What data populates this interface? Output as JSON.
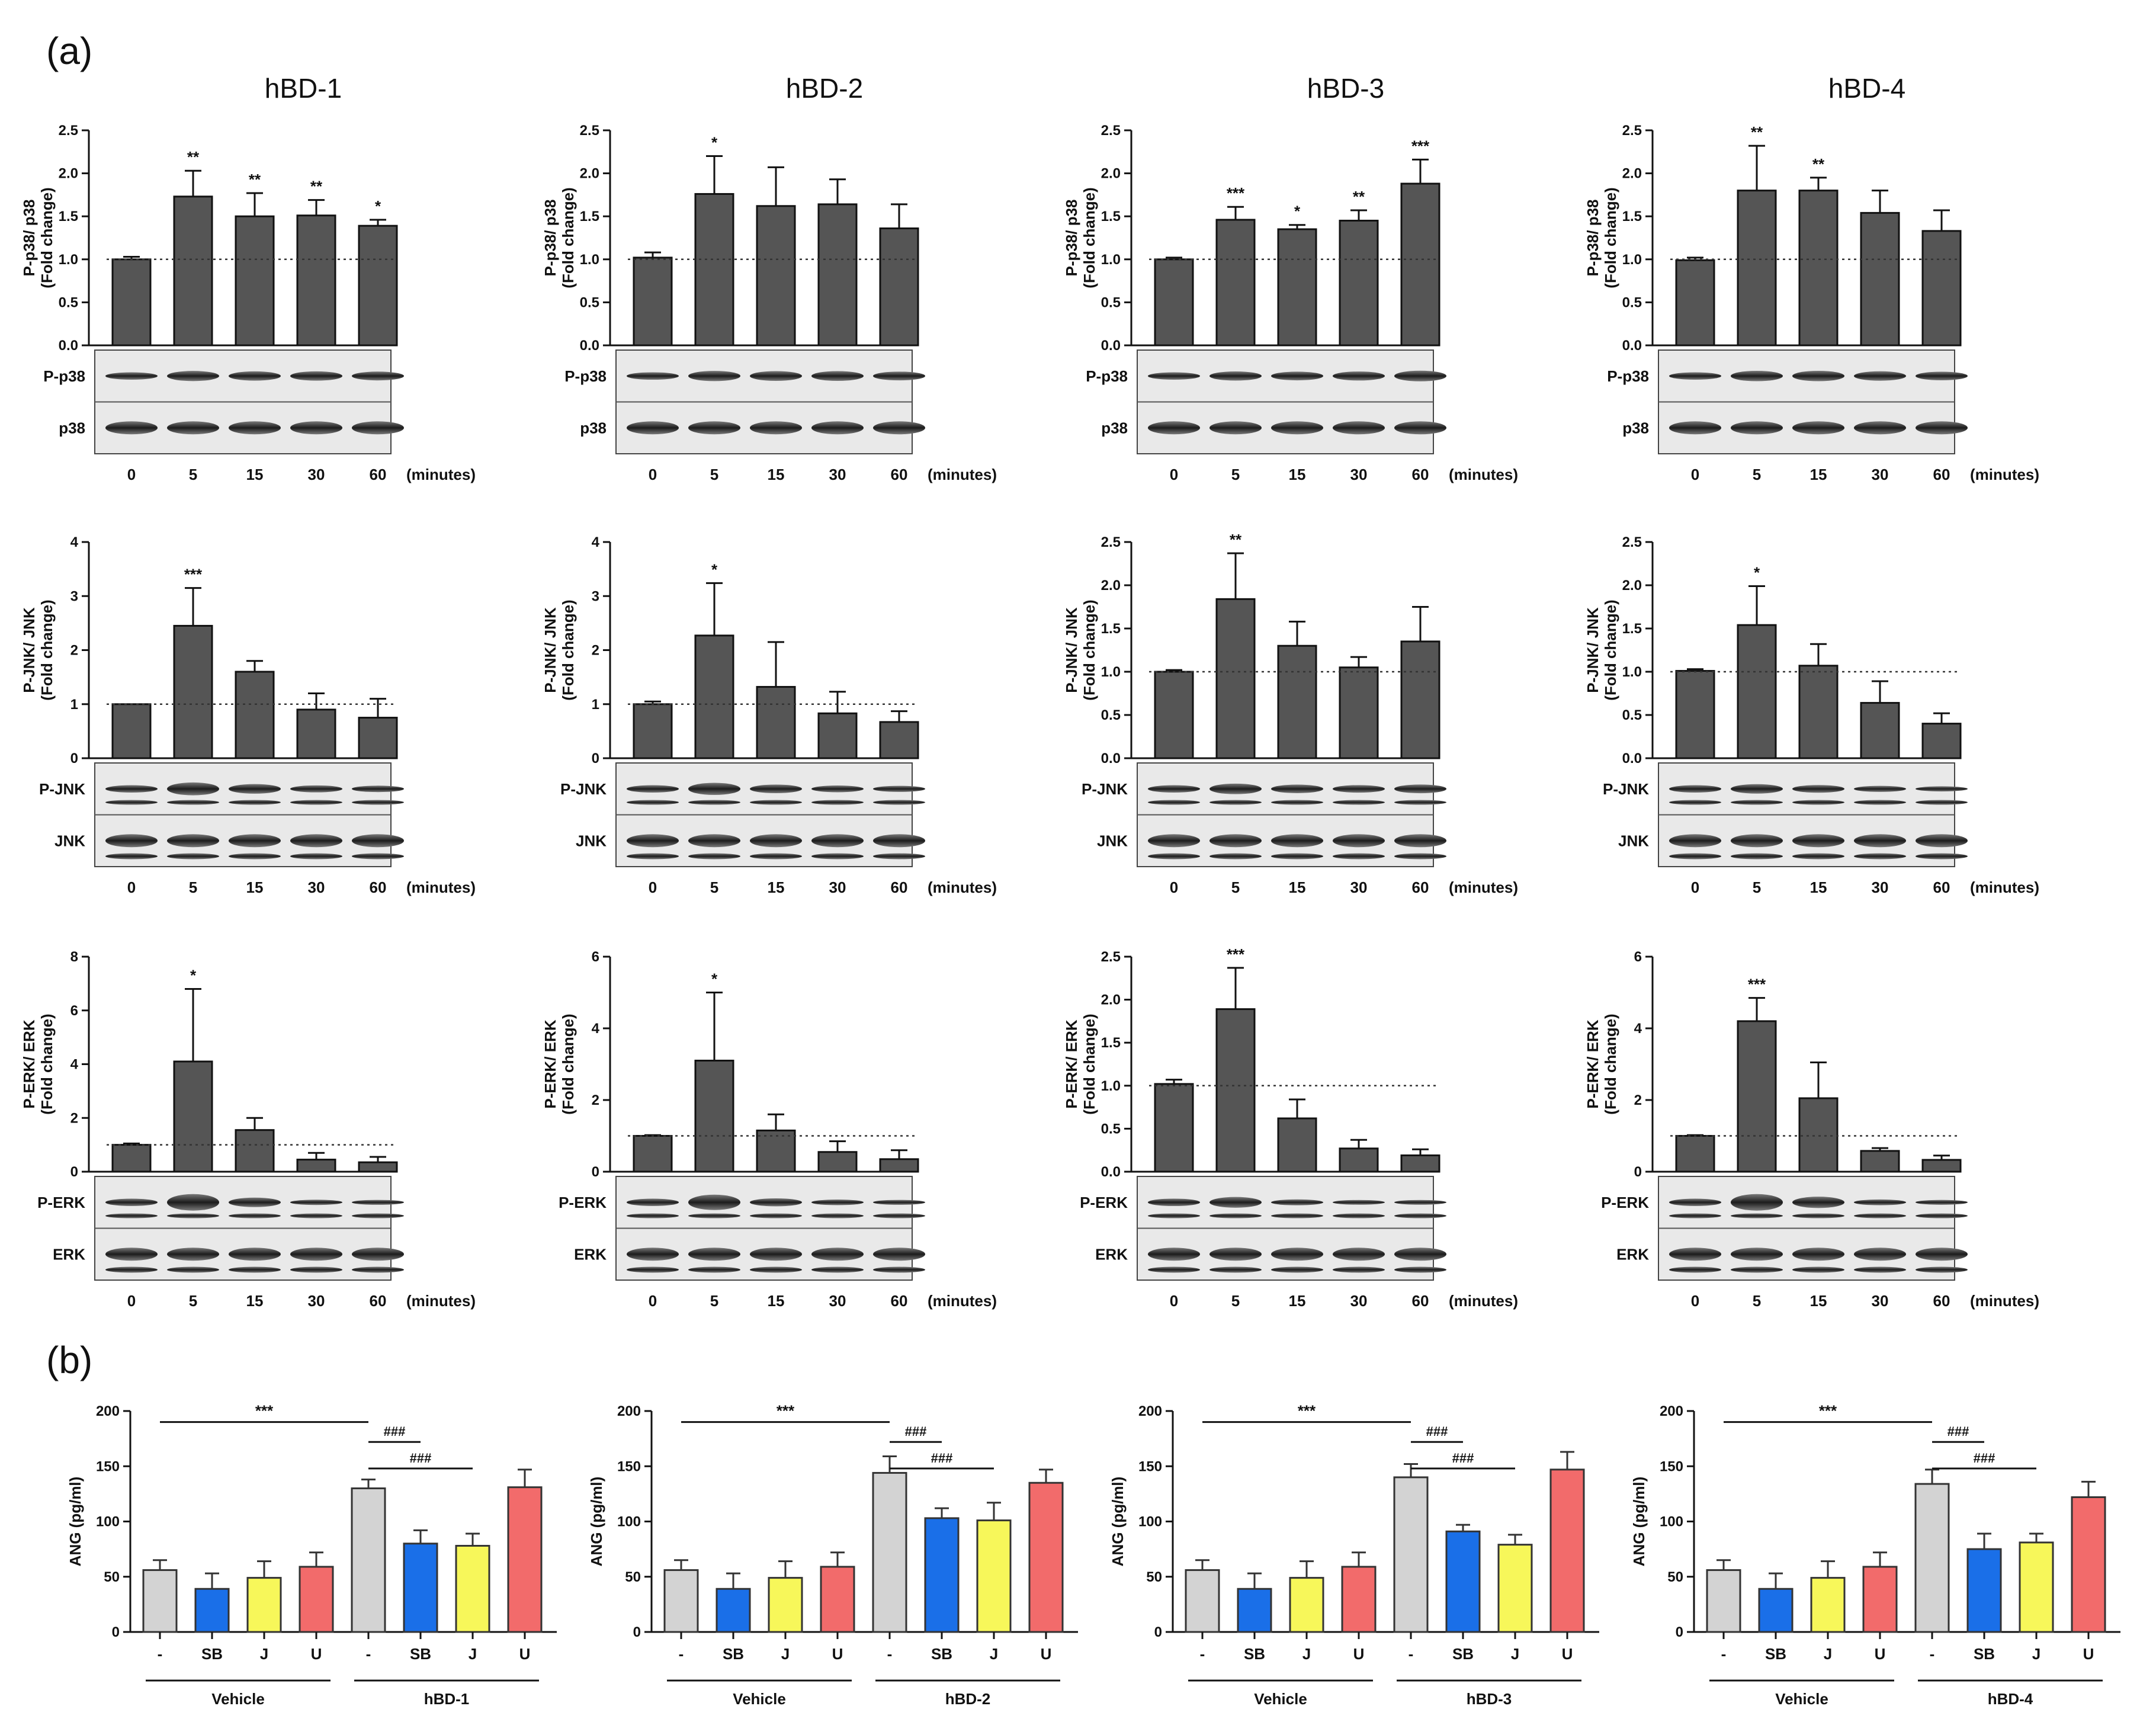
{
  "figure": {
    "panel_a_label": "(a)",
    "panel_b_label": "(b)",
    "columns": [
      "hBD-1",
      "hBD-2",
      "hBD-3",
      "hBD-4"
    ]
  },
  "colors": {
    "bar_dark": "#555555",
    "vehicle_grey": "#d3d3d3",
    "sb_blue": "#1a6fe8",
    "j_yellow": "#f7f75a",
    "u_red": "#f26b6b"
  },
  "chart_data": [
    {
      "type": "bar",
      "panel": "a",
      "row": "p38",
      "column": "hBD-1",
      "ylabel": [
        "P-p38/ p38",
        "(Fold change)"
      ],
      "categories": [
        "0",
        "5",
        "15",
        "30",
        "60"
      ],
      "xunit": "(minutes)",
      "values": [
        1.0,
        1.73,
        1.5,
        1.51,
        1.39
      ],
      "errors": [
        0.03,
        0.3,
        0.27,
        0.18,
        0.07
      ],
      "significance": [
        "",
        "**",
        "**",
        "**",
        "*"
      ],
      "ylim": [
        0,
        2.5
      ],
      "yticks": [
        "0.0",
        "0.5",
        "1.0",
        "1.5",
        "2.0",
        "2.5"
      ],
      "reference_line": 1.0,
      "blot_labels": [
        "P-p38",
        "p38"
      ]
    },
    {
      "type": "bar",
      "panel": "a",
      "row": "p38",
      "column": "hBD-2",
      "ylabel": [
        "P-p38/ p38",
        "(Fold change)"
      ],
      "categories": [
        "0",
        "5",
        "15",
        "30",
        "60"
      ],
      "xunit": "(minutes)",
      "values": [
        1.02,
        1.76,
        1.62,
        1.64,
        1.36
      ],
      "errors": [
        0.06,
        0.44,
        0.45,
        0.29,
        0.28
      ],
      "significance": [
        "",
        "*",
        "",
        "",
        ""
      ],
      "ylim": [
        0,
        2.5
      ],
      "yticks": [
        "0.0",
        "0.5",
        "1.0",
        "1.5",
        "2.0",
        "2.5"
      ],
      "reference_line": 1.0,
      "blot_labels": [
        "P-p38",
        "p38"
      ]
    },
    {
      "type": "bar",
      "panel": "a",
      "row": "p38",
      "column": "hBD-3",
      "ylabel": [
        "P-p38/ p38",
        "(Fold change)"
      ],
      "categories": [
        "0",
        "5",
        "15",
        "30",
        "60"
      ],
      "xunit": "(minutes)",
      "values": [
        1.0,
        1.46,
        1.35,
        1.45,
        1.88
      ],
      "errors": [
        0.02,
        0.15,
        0.05,
        0.12,
        0.28
      ],
      "significance": [
        "",
        "***",
        "*",
        "**",
        "***"
      ],
      "ylim": [
        0,
        2.5
      ],
      "yticks": [
        "0.0",
        "0.5",
        "1.0",
        "1.5",
        "2.0",
        "2.5"
      ],
      "reference_line": 1.0,
      "blot_labels": [
        "P-p38",
        "p38"
      ]
    },
    {
      "type": "bar",
      "panel": "a",
      "row": "p38",
      "column": "hBD-4",
      "ylabel": [
        "P-p38/ p38",
        "(Fold change)"
      ],
      "categories": [
        "0",
        "5",
        "15",
        "30",
        "60"
      ],
      "xunit": "(minutes)",
      "values": [
        0.99,
        1.8,
        1.8,
        1.54,
        1.33
      ],
      "errors": [
        0.03,
        0.52,
        0.15,
        0.26,
        0.24
      ],
      "significance": [
        "",
        "**",
        "**",
        "",
        ""
      ],
      "ylim": [
        0,
        2.5
      ],
      "yticks": [
        "0.0",
        "0.5",
        "1.0",
        "1.5",
        "2.0",
        "2.5"
      ],
      "reference_line": 1.0,
      "blot_labels": [
        "P-p38",
        "p38"
      ]
    },
    {
      "type": "bar",
      "panel": "a",
      "row": "JNK",
      "column": "hBD-1",
      "ylabel": [
        "P-JNK/ JNK",
        "(Fold change)"
      ],
      "categories": [
        "0",
        "5",
        "15",
        "30",
        "60"
      ],
      "xunit": "(minutes)",
      "values": [
        1.0,
        2.45,
        1.6,
        0.9,
        0.75
      ],
      "errors": [
        0.0,
        0.7,
        0.2,
        0.3,
        0.35
      ],
      "significance": [
        "",
        "***",
        "",
        "",
        ""
      ],
      "ylim": [
        0,
        4
      ],
      "yticks": [
        "0",
        "1",
        "2",
        "3",
        "4"
      ],
      "reference_line": 1.0,
      "blot_labels": [
        "P-JNK",
        "JNK"
      ]
    },
    {
      "type": "bar",
      "panel": "a",
      "row": "JNK",
      "column": "hBD-2",
      "ylabel": [
        "P-JNK/ JNK",
        "(Fold change)"
      ],
      "categories": [
        "0",
        "5",
        "15",
        "30",
        "60"
      ],
      "xunit": "(minutes)",
      "values": [
        1.0,
        2.27,
        1.32,
        0.83,
        0.67
      ],
      "errors": [
        0.05,
        0.97,
        0.83,
        0.4,
        0.2
      ],
      "significance": [
        "",
        "*",
        "",
        "",
        ""
      ],
      "ylim": [
        0,
        4
      ],
      "yticks": [
        "0",
        "1",
        "2",
        "3",
        "4"
      ],
      "reference_line": 1.0,
      "blot_labels": [
        "P-JNK",
        "JNK"
      ]
    },
    {
      "type": "bar",
      "panel": "a",
      "row": "JNK",
      "column": "hBD-3",
      "ylabel": [
        "P-JNK/ JNK",
        "(Fold change)"
      ],
      "categories": [
        "0",
        "5",
        "15",
        "30",
        "60"
      ],
      "xunit": "(minutes)",
      "values": [
        1.0,
        1.84,
        1.3,
        1.05,
        1.35
      ],
      "errors": [
        0.02,
        0.53,
        0.28,
        0.12,
        0.4
      ],
      "significance": [
        "",
        "**",
        "",
        "",
        ""
      ],
      "ylim": [
        0,
        2.5
      ],
      "yticks": [
        "0.0",
        "0.5",
        "1.0",
        "1.5",
        "2.0",
        "2.5"
      ],
      "reference_line": 1.0,
      "blot_labels": [
        "P-JNK",
        "JNK"
      ]
    },
    {
      "type": "bar",
      "panel": "a",
      "row": "JNK",
      "column": "hBD-4",
      "ylabel": [
        "P-JNK/ JNK",
        "(Fold change)"
      ],
      "categories": [
        "0",
        "5",
        "15",
        "30",
        "60"
      ],
      "xunit": "(minutes)",
      "values": [
        1.01,
        1.54,
        1.07,
        0.64,
        0.4
      ],
      "errors": [
        0.02,
        0.45,
        0.25,
        0.25,
        0.12
      ],
      "significance": [
        "",
        "*",
        "",
        "",
        ""
      ],
      "ylim": [
        0,
        2.5
      ],
      "yticks": [
        "0.0",
        "0.5",
        "1.0",
        "1.5",
        "2.0",
        "2.5"
      ],
      "reference_line": 1.0,
      "blot_labels": [
        "P-JNK",
        "JNK"
      ]
    },
    {
      "type": "bar",
      "panel": "a",
      "row": "ERK",
      "column": "hBD-1",
      "ylabel": [
        "P-ERK/ ERK",
        "(Fold change)"
      ],
      "categories": [
        "0",
        "5",
        "15",
        "30",
        "60"
      ],
      "xunit": "(minutes)",
      "values": [
        1.0,
        4.1,
        1.55,
        0.45,
        0.35
      ],
      "errors": [
        0.05,
        2.7,
        0.45,
        0.25,
        0.2
      ],
      "significance": [
        "",
        "*",
        "",
        "",
        ""
      ],
      "ylim": [
        0,
        8
      ],
      "yticks": [
        "0",
        "2",
        "4",
        "6",
        "8"
      ],
      "reference_line": 1.0,
      "blot_labels": [
        "P-ERK",
        "ERK"
      ]
    },
    {
      "type": "bar",
      "panel": "a",
      "row": "ERK",
      "column": "hBD-2",
      "ylabel": [
        "P-ERK/ ERK",
        "(Fold change)"
      ],
      "categories": [
        "0",
        "5",
        "15",
        "30",
        "60"
      ],
      "xunit": "(minutes)",
      "values": [
        1.0,
        3.1,
        1.15,
        0.55,
        0.35
      ],
      "errors": [
        0.02,
        1.9,
        0.45,
        0.3,
        0.25
      ],
      "significance": [
        "",
        "*",
        "",
        "",
        ""
      ],
      "ylim": [
        0,
        6
      ],
      "yticks": [
        "0",
        "2",
        "4",
        "6"
      ],
      "reference_line": 1.0,
      "blot_labels": [
        "P-ERK",
        "ERK"
      ]
    },
    {
      "type": "bar",
      "panel": "a",
      "row": "ERK",
      "column": "hBD-3",
      "ylabel": [
        "P-ERK/ ERK",
        "(Fold change)"
      ],
      "categories": [
        "0",
        "5",
        "15",
        "30",
        "60"
      ],
      "xunit": "(minutes)",
      "values": [
        1.02,
        1.89,
        0.62,
        0.27,
        0.19
      ],
      "errors": [
        0.05,
        0.48,
        0.22,
        0.1,
        0.07
      ],
      "significance": [
        "",
        "***",
        "",
        "",
        ""
      ],
      "ylim": [
        0,
        2.5
      ],
      "yticks": [
        "0.0",
        "0.5",
        "1.0",
        "1.5",
        "2.0",
        "2.5"
      ],
      "reference_line": 1.0,
      "blot_labels": [
        "P-ERK",
        "ERK"
      ]
    },
    {
      "type": "bar",
      "panel": "a",
      "row": "ERK",
      "column": "hBD-4",
      "ylabel": [
        "P-ERK/ ERK",
        "(Fold change)"
      ],
      "categories": [
        "0",
        "5",
        "15",
        "30",
        "60"
      ],
      "xunit": "(minutes)",
      "values": [
        1.0,
        4.2,
        2.05,
        0.58,
        0.33
      ],
      "errors": [
        0.02,
        0.65,
        1.0,
        0.08,
        0.12
      ],
      "significance": [
        "",
        "***",
        "",
        "",
        ""
      ],
      "ylim": [
        0,
        6
      ],
      "yticks": [
        "0",
        "2",
        "4",
        "6"
      ],
      "reference_line": 1.0,
      "blot_labels": [
        "P-ERK",
        "ERK"
      ]
    },
    {
      "type": "bar",
      "panel": "b",
      "column": "hBD-1",
      "ylabel": "ANG (pg/ml)",
      "categories": [
        "-",
        "SB",
        "J",
        "U",
        "-",
        "SB",
        "J",
        "U"
      ],
      "groups": [
        "Vehicle",
        "hBD-1"
      ],
      "values": [
        56,
        39,
        49,
        59,
        130,
        80,
        78,
        131
      ],
      "errors": [
        9,
        14,
        15,
        13,
        8,
        12,
        11,
        16
      ],
      "ylim": [
        0,
        200
      ],
      "yticks": [
        "0",
        "50",
        "100",
        "150",
        "200"
      ],
      "comparisons": [
        {
          "label": "***",
          "from": 0,
          "to": 4
        },
        {
          "label": "###",
          "from": 4,
          "to": 5
        },
        {
          "label": "###",
          "from": 4,
          "to": 6
        }
      ]
    },
    {
      "type": "bar",
      "panel": "b",
      "column": "hBD-2",
      "ylabel": "ANG (pg/ml)",
      "categories": [
        "-",
        "SB",
        "J",
        "U",
        "-",
        "SB",
        "J",
        "U"
      ],
      "groups": [
        "Vehicle",
        "hBD-2"
      ],
      "values": [
        56,
        39,
        49,
        59,
        144,
        103,
        101,
        135
      ],
      "errors": [
        9,
        14,
        15,
        13,
        15,
        9,
        16,
        12
      ],
      "ylim": [
        0,
        200
      ],
      "yticks": [
        "0",
        "50",
        "100",
        "150",
        "200"
      ],
      "comparisons": [
        {
          "label": "***",
          "from": 0,
          "to": 4
        },
        {
          "label": "###",
          "from": 4,
          "to": 5
        },
        {
          "label": "###",
          "from": 4,
          "to": 6
        }
      ]
    },
    {
      "type": "bar",
      "panel": "b",
      "column": "hBD-3",
      "ylabel": "ANG (pg/ml)",
      "categories": [
        "-",
        "SB",
        "J",
        "U",
        "-",
        "SB",
        "J",
        "U"
      ],
      "groups": [
        "Vehicle",
        "hBD-3"
      ],
      "values": [
        56,
        39,
        49,
        59,
        140,
        91,
        79,
        147
      ],
      "errors": [
        9,
        14,
        15,
        13,
        12,
        6,
        9,
        16
      ],
      "ylim": [
        0,
        200
      ],
      "yticks": [
        "0",
        "50",
        "100",
        "150",
        "200"
      ],
      "comparisons": [
        {
          "label": "***",
          "from": 0,
          "to": 4
        },
        {
          "label": "###",
          "from": 4,
          "to": 5
        },
        {
          "label": "###",
          "from": 4,
          "to": 6
        }
      ]
    },
    {
      "type": "bar",
      "panel": "b",
      "column": "hBD-4",
      "ylabel": "ANG (pg/ml)",
      "categories": [
        "-",
        "SB",
        "J",
        "U",
        "-",
        "SB",
        "J",
        "U"
      ],
      "groups": [
        "Vehicle",
        "hBD-4"
      ],
      "values": [
        56,
        39,
        49,
        59,
        134,
        75,
        81,
        122
      ],
      "errors": [
        9,
        14,
        15,
        13,
        13,
        14,
        8,
        14
      ],
      "ylim": [
        0,
        200
      ],
      "yticks": [
        "0",
        "50",
        "100",
        "150",
        "200"
      ],
      "comparisons": [
        {
          "label": "***",
          "from": 0,
          "to": 4
        },
        {
          "label": "###",
          "from": 4,
          "to": 5
        },
        {
          "label": "###",
          "from": 4,
          "to": 6
        }
      ]
    }
  ]
}
